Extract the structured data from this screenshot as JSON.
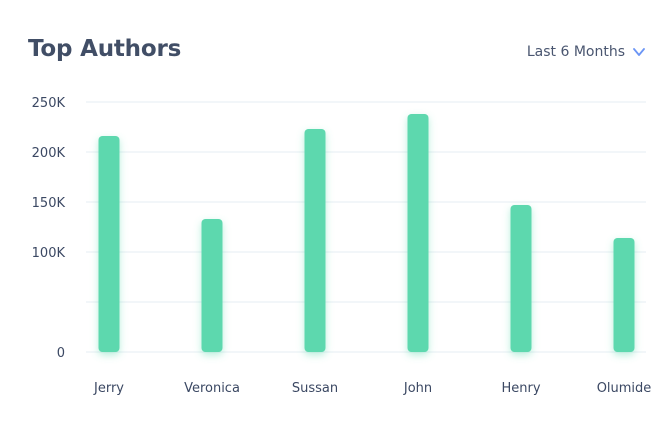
{
  "header": {
    "title": "Top Authors",
    "range_label": "Last 6 Months"
  },
  "icons": {
    "range_chevron": "chevron-down-icon"
  },
  "colors": {
    "bar": "#5dd8ae",
    "grid": "#e6edf3",
    "chevron": "#6b95f5"
  },
  "chart_data": {
    "type": "bar",
    "title": "Top Authors",
    "categories": [
      "Jerry",
      "Veronica",
      "Sussan",
      "John",
      "Henry",
      "Olumide"
    ],
    "values": [
      216000,
      133000,
      223000,
      238000,
      147000,
      114000
    ],
    "ylim": [
      0,
      250000
    ],
    "yticks": [
      0,
      50000,
      100000,
      150000,
      200000,
      250000
    ],
    "ytick_labels": [
      "0",
      "",
      "100K",
      "150K",
      "200K",
      "250K"
    ],
    "xlabel": "",
    "ylabel": "",
    "grid": true,
    "legend": "none"
  }
}
